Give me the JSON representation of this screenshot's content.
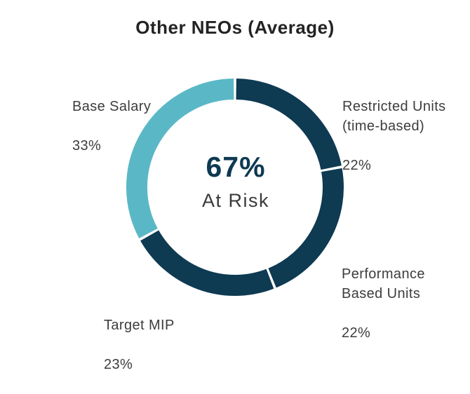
{
  "chart_data": {
    "type": "pie",
    "subtype": "donut",
    "title": "Other NEOs (Average)",
    "start_angle_deg": 0,
    "direction": "clockwise",
    "gap_deg": 1.4,
    "ring_thickness_ratio": 0.19,
    "background_color": "#ffffff",
    "gap_color": "#ffffff",
    "segments": [
      {
        "label": "Restricted Units\n(time-based)",
        "pct_label": "22%",
        "value": 22,
        "color": "#0e3a52"
      },
      {
        "label": "Performance\nBased Units",
        "pct_label": "22%",
        "value": 22,
        "color": "#0e3a52"
      },
      {
        "label": "Target MIP",
        "pct_label": "23%",
        "value": 23,
        "color": "#0e3a52"
      },
      {
        "label": "Base Salary",
        "pct_label": "33%",
        "value": 33,
        "color": "#5ab8c6"
      }
    ],
    "center_label": {
      "value": "67%",
      "caption": "At Risk"
    },
    "colors": {
      "at_risk": "#0e3a52",
      "fixed": "#5ab8c6",
      "title_text": "#232323",
      "label_text": "#3d3d3d"
    },
    "legend_position": "outside-labels"
  }
}
